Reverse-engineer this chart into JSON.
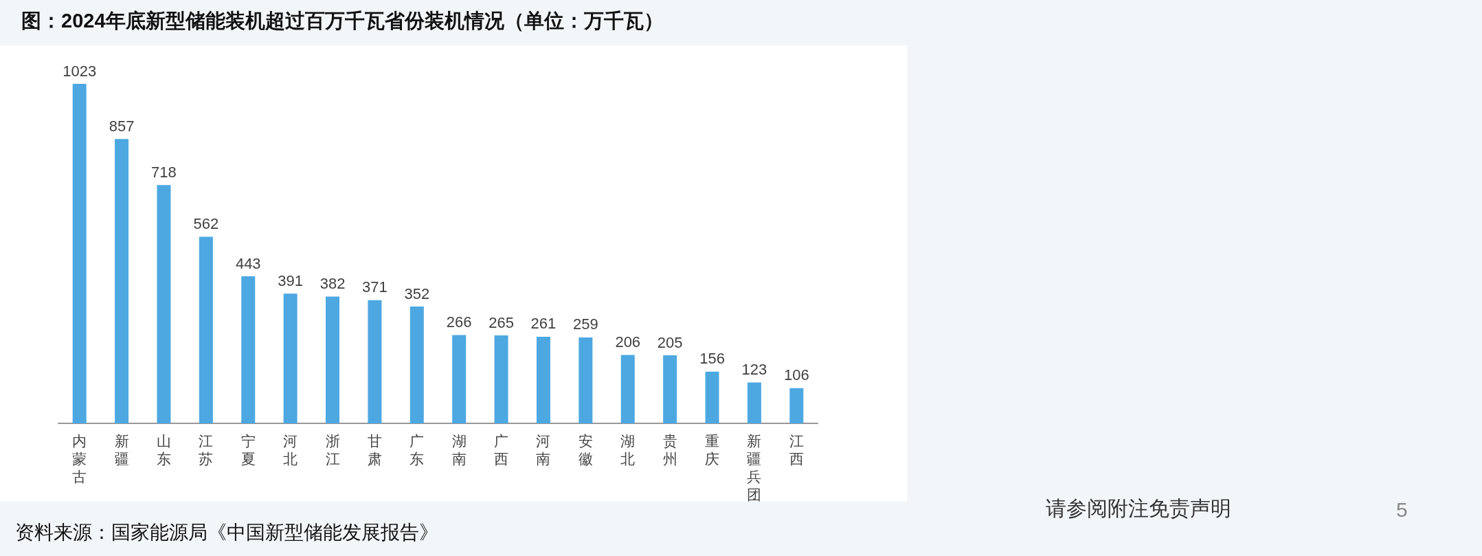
{
  "chart_data": {
    "type": "bar",
    "title": "图：2024年底新型储能装机超过百万千瓦省份装机情况（单位：万千瓦）",
    "categories": [
      "内蒙古",
      "新疆",
      "山东",
      "江苏",
      "宁夏",
      "河北",
      "浙江",
      "甘肃",
      "广东",
      "湖南",
      "广西",
      "河南",
      "安徽",
      "湖北",
      "贵州",
      "重庆",
      "新疆兵团",
      "江西"
    ],
    "values": [
      1023,
      857,
      718,
      562,
      443,
      391,
      382,
      371,
      352,
      266,
      265,
      261,
      259,
      206,
      205,
      156,
      123,
      106
    ],
    "color": "#4da8e2",
    "data_labels": true,
    "tick_labels": "x",
    "annotations": [
      "资料来源：国家能源局《中国新型储能发展报告》",
      "请参阅附注免责声明",
      "5"
    ]
  }
}
